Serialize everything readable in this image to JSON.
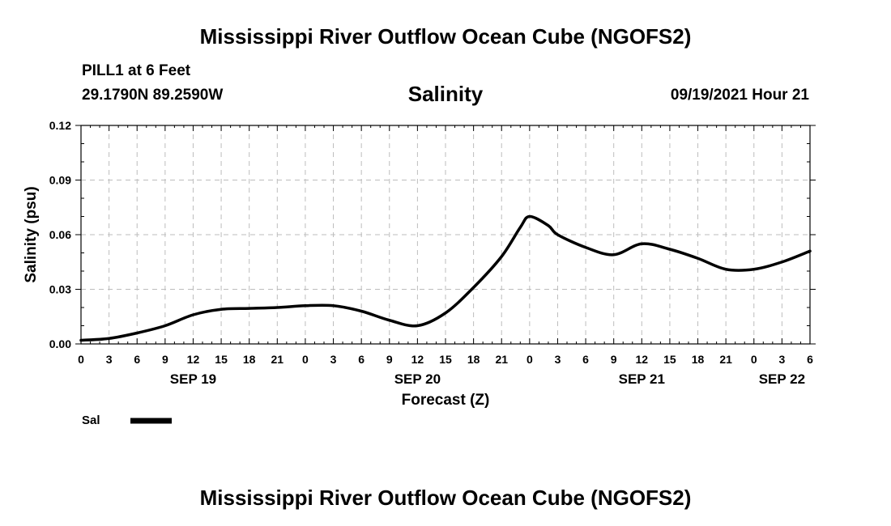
{
  "header": {
    "title": "Mississippi River Outflow Ocean Cube (NGOFS2)",
    "station": "PILL1 at 6 Feet",
    "coords": "29.1790N  89.2590W",
    "variable": "Salinity",
    "datetime": "09/19/2021 Hour 21"
  },
  "footer": {
    "title": "Mississippi River Outflow Ocean Cube (NGOFS2)"
  },
  "chart_data": {
    "type": "line",
    "title": "Salinity",
    "xlabel": "Forecast (Z)",
    "ylabel": "Salinity (psu)",
    "xlim": [
      0,
      78
    ],
    "ylim": [
      0,
      0.12
    ],
    "grid": true,
    "legend_position": "bottom-left",
    "y_ticks": [
      0,
      0.03,
      0.06,
      0.09,
      0.12
    ],
    "y_tick_labels": [
      "0.00",
      "0.03",
      "0.06",
      "0.09",
      "0.12"
    ],
    "x_ticks": [
      0,
      3,
      6,
      9,
      12,
      15,
      18,
      21,
      24,
      27,
      30,
      33,
      36,
      39,
      42,
      45,
      48,
      51,
      54,
      57,
      60,
      63,
      66,
      69,
      72,
      75,
      78
    ],
    "x_tick_labels": [
      "0",
      "3",
      "6",
      "9",
      "12",
      "15",
      "18",
      "21",
      "0",
      "3",
      "6",
      "9",
      "12",
      "15",
      "18",
      "21",
      "0",
      "3",
      "6",
      "9",
      "12",
      "15",
      "18",
      "21",
      "0",
      "3",
      "6"
    ],
    "date_labels": [
      {
        "hour": 12,
        "label": "SEP 19"
      },
      {
        "hour": 36,
        "label": "SEP 20"
      },
      {
        "hour": 60,
        "label": "SEP 21"
      },
      {
        "hour": 75,
        "label": "SEP 22"
      }
    ],
    "series": [
      {
        "name": "Sal",
        "color": "#000000",
        "x": [
          0,
          3,
          6,
          9,
          12,
          15,
          18,
          21,
          24,
          27,
          30,
          33,
          36,
          39,
          42,
          45,
          47,
          48,
          50,
          51,
          54,
          57,
          60,
          63,
          66,
          69,
          72,
          75,
          78
        ],
        "values": [
          0.002,
          0.003,
          0.006,
          0.01,
          0.016,
          0.019,
          0.0195,
          0.02,
          0.021,
          0.021,
          0.018,
          0.013,
          0.01,
          0.017,
          0.031,
          0.048,
          0.064,
          0.07,
          0.065,
          0.06,
          0.053,
          0.049,
          0.055,
          0.052,
          0.047,
          0.041,
          0.041,
          0.045,
          0.051
        ]
      }
    ]
  }
}
